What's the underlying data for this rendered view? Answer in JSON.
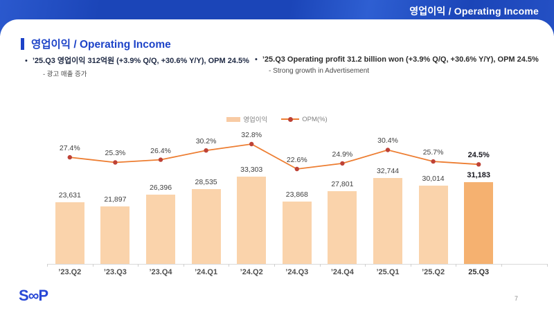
{
  "header": {
    "title": "영업이익 /  Operating Income"
  },
  "title": {
    "text": "영업이익 / Operating Income"
  },
  "bullets": {
    "marker": "•",
    "left": {
      "text": "’25.Q3 영업이익 312억원 (+3.9% Q/Q, +30.6% Y/Y), OPM 24.5%",
      "sub": "- 광고 매출 증가"
    },
    "right": {
      "text": "’25.Q3 Operating profit 31.2 billion won (+3.9% Q/Q, +30.6% Y/Y), OPM 24.5%",
      "sub": "- Strong growth in Advertisement"
    }
  },
  "legend": {
    "bar_label": "영업이익",
    "line_label": "OPM(%)"
  },
  "chart_data": {
    "type": "bar",
    "subtype": "bar+line-combo",
    "categories": [
      "’23.Q2",
      "’23.Q3",
      "’23.Q4",
      "’24.Q1",
      "’24.Q2",
      "’24.Q3",
      "’24.Q4",
      "’25.Q1",
      "’25.Q2",
      "25.Q3"
    ],
    "series": [
      {
        "name": "영업이익",
        "type": "bar",
        "values": [
          23631,
          21897,
          26396,
          28535,
          33303,
          23868,
          27801,
          32744,
          30014,
          31183
        ]
      },
      {
        "name": "OPM(%)",
        "type": "line",
        "values": [
          27.4,
          25.3,
          26.4,
          30.2,
          32.8,
          22.6,
          24.9,
          30.4,
          25.7,
          24.5
        ]
      }
    ],
    "highlight_last": true,
    "legend_position": "top",
    "grid": false,
    "colors": {
      "bar": "#FAD3AB",
      "bar_highlight": "#F5B170",
      "line": "#ED7D31",
      "point": "#BE4236"
    }
  },
  "footer": {
    "logo": "S∞P",
    "page": "7"
  }
}
